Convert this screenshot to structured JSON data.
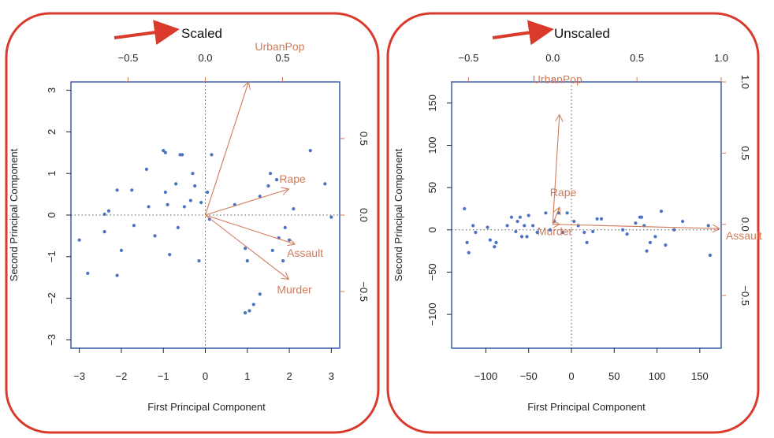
{
  "colors": {
    "frame": "#d93a2b",
    "plot_border": "#3a5fa8",
    "points": "#4a72c2",
    "loadings": "#d07a5a",
    "banner_arrow": "#d93a2b",
    "text": "#222222"
  },
  "chart_data": [
    {
      "type": "scatter",
      "banner": "Scaled",
      "xlabel": "First Principal Component",
      "ylabel": "Second Principal Component",
      "xlim": [
        -3.2,
        3.2
      ],
      "ylim": [
        -3.2,
        3.2
      ],
      "bottom_ticks": [
        -3,
        -2,
        -1,
        0,
        1,
        2,
        3
      ],
      "left_ticks": [
        -3,
        -2,
        -1,
        0,
        1,
        2,
        3
      ],
      "top_axis": {
        "lim": [
          -0.87,
          0.87
        ],
        "ticks": [
          -0.5,
          0.0,
          0.5
        ],
        "labels": [
          "−0.5",
          "0.0",
          "0.5"
        ]
      },
      "right_axis": {
        "lim": [
          -0.87,
          0.87
        ],
        "ticks": [
          -0.5,
          0.0,
          0.5
        ],
        "labels": [
          "−0.5",
          "0.0",
          "0.5"
        ]
      },
      "reference_lines": {
        "x": 0,
        "y": 0,
        "style": "dotted"
      },
      "points": [
        [
          -3.0,
          -0.6
        ],
        [
          -2.8,
          -1.4
        ],
        [
          -2.4,
          0.02
        ],
        [
          -2.4,
          -0.4
        ],
        [
          -2.3,
          0.1
        ],
        [
          -2.1,
          0.6
        ],
        [
          -2.1,
          -1.45
        ],
        [
          -2.0,
          -0.85
        ],
        [
          -1.75,
          0.6
        ],
        [
          -1.7,
          -0.25
        ],
        [
          -1.4,
          1.1
        ],
        [
          -1.35,
          0.2
        ],
        [
          -1.2,
          -0.5
        ],
        [
          -1.0,
          1.55
        ],
        [
          -0.95,
          1.5
        ],
        [
          -0.95,
          0.55
        ],
        [
          -0.9,
          0.25
        ],
        [
          -0.85,
          -0.95
        ],
        [
          -0.7,
          0.75
        ],
        [
          -0.65,
          -0.3
        ],
        [
          -0.6,
          1.45
        ],
        [
          -0.55,
          1.45
        ],
        [
          -0.5,
          0.2
        ],
        [
          -0.35,
          0.35
        ],
        [
          -0.3,
          1.0
        ],
        [
          -0.25,
          0.7
        ],
        [
          -0.15,
          -1.1
        ],
        [
          -0.1,
          0.3
        ],
        [
          0.05,
          0.55
        ],
        [
          0.1,
          -0.1
        ],
        [
          0.15,
          1.45
        ],
        [
          0.7,
          0.25
        ],
        [
          0.95,
          -0.8
        ],
        [
          1.0,
          -1.1
        ],
        [
          0.95,
          -2.35
        ],
        [
          1.05,
          -2.3
        ],
        [
          1.15,
          -2.15
        ],
        [
          1.3,
          -1.9
        ],
        [
          1.3,
          0.45
        ],
        [
          1.5,
          0.7
        ],
        [
          1.55,
          1.0
        ],
        [
          1.6,
          -0.85
        ],
        [
          1.7,
          0.85
        ],
        [
          1.75,
          -0.55
        ],
        [
          1.85,
          -1.1
        ],
        [
          1.9,
          -0.3
        ],
        [
          2.0,
          -0.6
        ],
        [
          2.1,
          0.15
        ],
        [
          2.5,
          1.55
        ],
        [
          2.85,
          0.75
        ],
        [
          3.0,
          -0.05
        ]
      ],
      "loadings": [
        {
          "name": "UrbanPop",
          "x": 0.28,
          "y": 0.87
        },
        {
          "name": "Rape",
          "x": 0.54,
          "y": 0.17
        },
        {
          "name": "Assault",
          "x": 0.58,
          "y": -0.19
        },
        {
          "name": "Murder",
          "x": 0.54,
          "y": -0.42
        }
      ]
    },
    {
      "type": "scatter",
      "banner": "Unscaled",
      "xlabel": "First Principal Component",
      "ylabel": "Second Principal Component",
      "xlim": [
        -140,
        175
      ],
      "ylim": [
        -140,
        175
      ],
      "bottom_ticks": [
        -100,
        -50,
        0,
        50,
        100,
        150
      ],
      "left_ticks": [
        -100,
        -50,
        0,
        50,
        100,
        150
      ],
      "top_axis": {
        "lim": [
          -0.6,
          1.0
        ],
        "ticks": [
          -0.5,
          0.0,
          0.5,
          1.0
        ],
        "labels": [
          "−0.5",
          "0.0",
          "0.5",
          "1.0"
        ]
      },
      "right_axis": {
        "lim": [
          -0.87,
          1.0
        ],
        "ticks": [
          -0.5,
          0.0,
          0.5,
          1.0
        ],
        "labels": [
          "−0.5",
          "0.0",
          "0.5",
          "1.0"
        ]
      },
      "reference_lines": {
        "x": 0,
        "y": 0,
        "style": "dotted"
      },
      "points": [
        [
          -125,
          25
        ],
        [
          -122,
          -15
        ],
        [
          -120,
          -27
        ],
        [
          -115,
          5
        ],
        [
          -112,
          -3
        ],
        [
          -98,
          3
        ],
        [
          -95,
          -12
        ],
        [
          -90,
          -20
        ],
        [
          -88,
          -15
        ],
        [
          -75,
          5
        ],
        [
          -70,
          15
        ],
        [
          -65,
          -2
        ],
        [
          -63,
          10
        ],
        [
          -60,
          15
        ],
        [
          -58,
          -8
        ],
        [
          -55,
          5
        ],
        [
          -52,
          -8
        ],
        [
          -50,
          17
        ],
        [
          -45,
          5
        ],
        [
          -40,
          -3
        ],
        [
          -30,
          20
        ],
        [
          -25,
          0
        ],
        [
          -20,
          10
        ],
        [
          -15,
          20
        ],
        [
          -10,
          -3
        ],
        [
          -5,
          20
        ],
        [
          3,
          10
        ],
        [
          8,
          5
        ],
        [
          15,
          -3
        ],
        [
          18,
          -15
        ],
        [
          25,
          -2
        ],
        [
          30,
          13
        ],
        [
          35,
          13
        ],
        [
          60,
          0
        ],
        [
          65,
          -5
        ],
        [
          75,
          8
        ],
        [
          80,
          15
        ],
        [
          82,
          15
        ],
        [
          85,
          5
        ],
        [
          88,
          -25
        ],
        [
          92,
          -15
        ],
        [
          98,
          -8
        ],
        [
          105,
          22
        ],
        [
          110,
          -18
        ],
        [
          120,
          0
        ],
        [
          130,
          10
        ],
        [
          160,
          5
        ],
        [
          162,
          -30
        ]
      ],
      "loadings": [
        {
          "name": "UrbanPop",
          "x": 0.04,
          "y": 0.77
        },
        {
          "name": "Rape",
          "x": 0.04,
          "y": 0.12
        },
        {
          "name": "Murder",
          "x": 0.04,
          "y": 0.0
        },
        {
          "name": "Assault",
          "x": 0.99,
          "y": -0.03
        }
      ]
    }
  ]
}
